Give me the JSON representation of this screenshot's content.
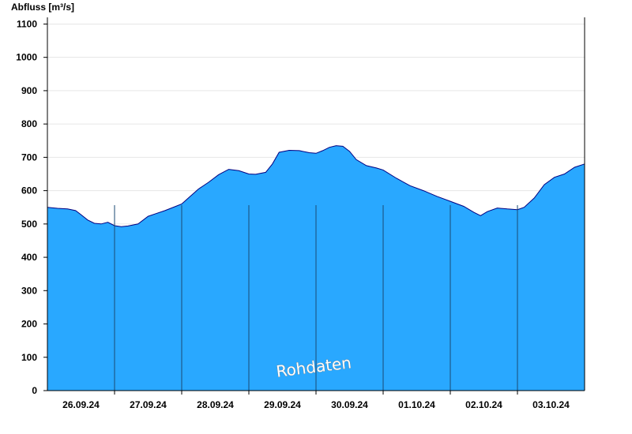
{
  "chart_data": {
    "type": "area",
    "ylabel": "Abfluss [m³/s]",
    "xlabel": "",
    "ylim": [
      0,
      1120
    ],
    "yticks": [
      0,
      100,
      200,
      300,
      400,
      500,
      600,
      700,
      800,
      900,
      1000,
      1100
    ],
    "xlim": [
      0,
      8
    ],
    "day_labels": [
      "26.09.24",
      "27.09.24",
      "28.09.24",
      "29.09.24",
      "30.09.24",
      "01.10.24",
      "02.10.24",
      "03.10.24"
    ],
    "grid": true,
    "fill_color": "#29a8ff",
    "line_color": "#000080",
    "watermark": "Rohdaten",
    "series": [
      {
        "x": [
          0.0,
          0.15,
          0.3,
          0.42,
          0.5,
          0.6,
          0.7,
          0.8,
          0.9,
          1.0,
          1.1,
          1.2,
          1.35,
          1.5,
          1.6,
          1.75,
          1.9,
          2.0,
          2.1,
          2.25,
          2.4,
          2.55,
          2.7,
          2.85,
          3.0,
          3.1,
          3.25,
          3.35,
          3.45,
          3.6,
          3.75,
          3.9,
          4.0,
          4.1,
          4.2,
          4.3,
          4.4,
          4.5,
          4.6,
          4.75,
          4.9,
          5.0,
          5.2,
          5.4,
          5.6,
          5.8,
          6.0,
          6.2,
          6.35,
          6.45,
          6.55,
          6.7,
          6.85,
          7.0,
          7.1,
          7.25,
          7.4,
          7.55,
          7.7,
          7.85,
          8.0
        ],
        "y": [
          550,
          547,
          545,
          540,
          528,
          512,
          502,
          500,
          505,
          495,
          492,
          494,
          500,
          523,
          530,
          540,
          552,
          560,
          578,
          605,
          625,
          648,
          664,
          660,
          650,
          649,
          655,
          680,
          715,
          721,
          720,
          714,
          712,
          720,
          730,
          735,
          733,
          718,
          693,
          675,
          668,
          662,
          637,
          615,
          600,
          583,
          568,
          553,
          535,
          525,
          537,
          548,
          545,
          543,
          550,
          578,
          618,
          640,
          650,
          670,
          680
        ]
      }
    ]
  }
}
